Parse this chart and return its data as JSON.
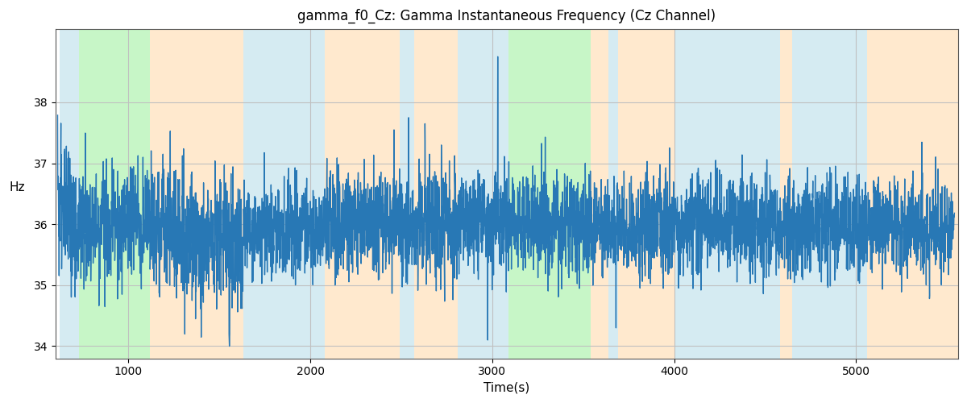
{
  "title": "gamma_f0_Cz: Gamma Instantaneous Frequency (Cz Channel)",
  "xlabel": "Time(s)",
  "ylabel": "Hz",
  "xlim": [
    600,
    5560
  ],
  "ylim": [
    33.8,
    39.2
  ],
  "yticks": [
    34,
    35,
    36,
    37,
    38
  ],
  "xticks": [
    1000,
    2000,
    3000,
    4000,
    5000
  ],
  "line_color": "#2878b5",
  "line_width": 1.0,
  "bg_color": "#ffffff",
  "grid_color": "#c0c0c0",
  "colored_bands": [
    {
      "xmin": 620,
      "xmax": 730,
      "color": "#add8e6",
      "alpha": 0.5
    },
    {
      "xmin": 730,
      "xmax": 1120,
      "color": "#90ee90",
      "alpha": 0.5
    },
    {
      "xmin": 1120,
      "xmax": 1630,
      "color": "#ffd59e",
      "alpha": 0.5
    },
    {
      "xmin": 1630,
      "xmax": 2080,
      "color": "#add8e6",
      "alpha": 0.5
    },
    {
      "xmin": 2080,
      "xmax": 2490,
      "color": "#ffd59e",
      "alpha": 0.5
    },
    {
      "xmin": 2490,
      "xmax": 2570,
      "color": "#add8e6",
      "alpha": 0.5
    },
    {
      "xmin": 2570,
      "xmax": 2810,
      "color": "#ffd59e",
      "alpha": 0.5
    },
    {
      "xmin": 2810,
      "xmax": 3090,
      "color": "#add8e6",
      "alpha": 0.5
    },
    {
      "xmin": 3090,
      "xmax": 3540,
      "color": "#90ee90",
      "alpha": 0.5
    },
    {
      "xmin": 3540,
      "xmax": 3640,
      "color": "#ffd59e",
      "alpha": 0.5
    },
    {
      "xmin": 3640,
      "xmax": 3690,
      "color": "#add8e6",
      "alpha": 0.5
    },
    {
      "xmin": 3690,
      "xmax": 4000,
      "color": "#ffd59e",
      "alpha": 0.5
    },
    {
      "xmin": 4000,
      "xmax": 4580,
      "color": "#add8e6",
      "alpha": 0.5
    },
    {
      "xmin": 4580,
      "xmax": 4650,
      "color": "#ffd59e",
      "alpha": 0.5
    },
    {
      "xmin": 4650,
      "xmax": 5060,
      "color": "#add8e6",
      "alpha": 0.5
    },
    {
      "xmin": 5060,
      "xmax": 5560,
      "color": "#ffd59e",
      "alpha": 0.5
    }
  ],
  "seed": 42,
  "n_points": 4930,
  "time_start": 611,
  "time_end": 5540,
  "base_freq": 36.0,
  "figsize": [
    12,
    5
  ],
  "dpi": 100
}
